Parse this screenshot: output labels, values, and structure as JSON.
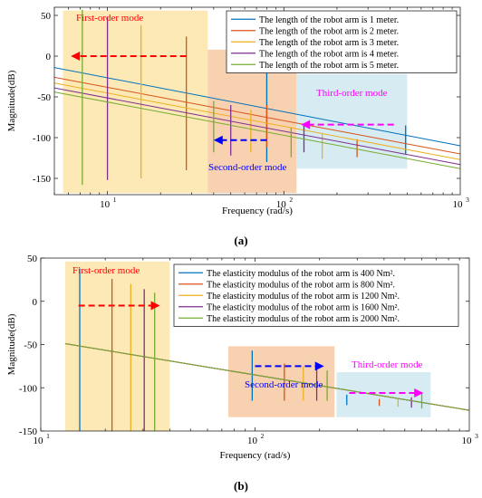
{
  "colors": {
    "series": [
      "#0072BD",
      "#D95319",
      "#EDB120",
      "#7E2F8E",
      "#77AC30"
    ],
    "first_order_box": "#FCE9B6",
    "second_order_box": "#F8D2B0",
    "third_order_box": "#D6EBF2",
    "arrow_red": "#FF0000",
    "arrow_blue": "#0000FF",
    "arrow_magenta": "#FF00FF"
  },
  "chart_data": [
    {
      "id": "a",
      "type": "line",
      "caption": "(a)",
      "xlabel": "Frequency  (rad/s)",
      "ylabel": "Magnitude(dB)",
      "xscale": "log",
      "xlim": [
        5,
        1000
      ],
      "ylim": [
        -170,
        60
      ],
      "xticks": [
        10,
        100,
        1000
      ],
      "xticklabels": [
        "10",
        "10",
        "10"
      ],
      "xtickexps": [
        "1",
        "2",
        "3"
      ],
      "yticks": [
        50,
        0,
        -50,
        -100,
        -150
      ],
      "yticklabels": [
        "50",
        "0",
        "-50",
        "-100",
        "-150"
      ],
      "grid": false,
      "legend_position": "top-right",
      "series": [
        {
          "name": "The length of the robot arm  is 1 meter.",
          "baseline": {
            "x": [
              5,
              1000
            ],
            "y": [
              -14,
              -110
            ]
          },
          "spikes": [
            {
              "x": 80,
              "y_top": 18,
              "y_bottom": -130
            },
            {
              "x": 490,
              "y_top": -85,
              "y_bottom": -120
            }
          ]
        },
        {
          "name": "The length of the robot arm  is 2 meter.",
          "baseline": {
            "x": [
              5,
              1000
            ],
            "y": [
              -26,
              -120
            ]
          },
          "spikes": [
            {
              "x": 28,
              "y_top": 24,
              "y_bottom": -140
            },
            {
              "x": 80,
              "y_top": -60,
              "y_bottom": -112
            },
            {
              "x": 260,
              "y_top": -102,
              "y_bottom": -124
            }
          ]
        },
        {
          "name": "The length of the robot arm  is 3 meter.",
          "baseline": {
            "x": [
              5,
              1000
            ],
            "y": [
              -33,
              -127
            ]
          },
          "spikes": [
            {
              "x": 15.5,
              "y_top": 38,
              "y_bottom": -150
            },
            {
              "x": 65,
              "y_top": -66,
              "y_bottom": -118
            },
            {
              "x": 165,
              "y_top": -95,
              "y_bottom": -126
            }
          ]
        },
        {
          "name": "The length of the robot arm  is 4 meter.",
          "baseline": {
            "x": [
              5,
              1000
            ],
            "y": [
              -39,
              -133
            ]
          },
          "spikes": [
            {
              "x": 10,
              "y_top": 48,
              "y_bottom": -152
            },
            {
              "x": 50,
              "y_top": -60,
              "y_bottom": -122
            },
            {
              "x": 130,
              "y_top": -85,
              "y_bottom": -118
            }
          ]
        },
        {
          "name": "The length of the robot arm  is 5 meter.",
          "baseline": {
            "x": [
              5,
              1000
            ],
            "y": [
              -44,
              -138
            ]
          },
          "spikes": [
            {
              "x": 7.2,
              "y_top": 57,
              "y_bottom": -158
            },
            {
              "x": 40,
              "y_top": -55,
              "y_bottom": -118
            },
            {
              "x": 110,
              "y_top": -88,
              "y_bottom": -124
            }
          ]
        }
      ],
      "annotations": [
        {
          "kind": "region",
          "label": "First-order mode",
          "color": "first_order_box",
          "label_color": "arrow_red",
          "x": [
            5.6,
            37
          ],
          "y": [
            -168,
            56
          ]
        },
        {
          "kind": "region",
          "label": "Second-order mode",
          "color": "second_order_box",
          "label_color": "arrow_blue",
          "x": [
            37,
            118
          ],
          "y": [
            -168,
            8
          ]
        },
        {
          "kind": "region",
          "label": "Third-order mode",
          "color": "third_order_box",
          "label_color": "arrow_magenta",
          "x": [
            118,
            500
          ],
          "y": [
            -138,
            -22
          ]
        },
        {
          "kind": "arrow",
          "color": "arrow_red",
          "from": [
            28,
            0
          ],
          "to": [
            6.2,
            0
          ]
        },
        {
          "kind": "arrow",
          "color": "arrow_blue",
          "from": [
            80,
            -103
          ],
          "to": [
            40,
            -103
          ]
        },
        {
          "kind": "arrow",
          "color": "arrow_magenta",
          "from": [
            420,
            -84
          ],
          "to": [
            125,
            -84
          ]
        }
      ]
    },
    {
      "id": "b",
      "type": "line",
      "caption": "(b)",
      "xlabel": "Frequency  (rad/s)",
      "ylabel": "Magnitude(dB)",
      "xscale": "log",
      "xlim": [
        10,
        1000
      ],
      "ylim": [
        -150,
        50
      ],
      "xticks": [
        10,
        100,
        1000
      ],
      "xticklabels": [
        "10",
        "10",
        "10"
      ],
      "xtickexps": [
        "1",
        "2",
        "3"
      ],
      "yticks": [
        50,
        0,
        -50,
        -100,
        -150
      ],
      "yticklabels": [
        "50",
        "0",
        "-50",
        "-100",
        "-150"
      ],
      "grid": false,
      "legend_position": "top-right",
      "series": [
        {
          "name": "The elasticity modulus of the robot arm is   400 Nm².",
          "baseline": {
            "x": [
              13,
              1000
            ],
            "y": [
              -49,
              -126
            ]
          },
          "spikes": [
            {
              "x": 15.2,
              "y_top": 38,
              "y_bottom": -150
            },
            {
              "x": 97,
              "y_top": -57,
              "y_bottom": -115
            },
            {
              "x": 268,
              "y_top": -108,
              "y_bottom": -120
            }
          ]
        },
        {
          "name": "The elasticity modulus of the robot arm is   800 Nm².",
          "baseline": {
            "x": [
              13,
              1000
            ],
            "y": [
              -49,
              -126
            ]
          },
          "spikes": [
            {
              "x": 21.5,
              "y_top": 26,
              "y_bottom": -150
            },
            {
              "x": 137,
              "y_top": -72,
              "y_bottom": -115
            },
            {
              "x": 380,
              "y_top": -113,
              "y_bottom": -121
            }
          ]
        },
        {
          "name": "The elasticity modulus of the robot arm is  1200 Nm².",
          "baseline": {
            "x": [
              13,
              1000
            ],
            "y": [
              -49,
              -126
            ]
          },
          "spikes": [
            {
              "x": 26.3,
              "y_top": 20,
              "y_bottom": -150
            },
            {
              "x": 168,
              "y_top": -75,
              "y_bottom": -115
            },
            {
              "x": 465,
              "y_top": -113,
              "y_bottom": -122
            }
          ]
        },
        {
          "name": "The elasticity modulus of the robot arm is  1600 Nm².",
          "baseline": {
            "x": [
              13,
              1000
            ],
            "y": [
              -49,
              -126
            ]
          },
          "spikes": [
            {
              "x": 30.4,
              "y_top": 14,
              "y_bottom": -150
            },
            {
              "x": 194,
              "y_top": -77,
              "y_bottom": -115
            },
            {
              "x": 537,
              "y_top": -111,
              "y_bottom": -123
            }
          ]
        },
        {
          "name": "The elasticity modulus of the robot arm is  2000 Nm².",
          "baseline": {
            "x": [
              13,
              1000
            ],
            "y": [
              -49,
              -126
            ]
          },
          "spikes": [
            {
              "x": 34,
              "y_top": 10,
              "y_bottom": -150
            },
            {
              "x": 217,
              "y_top": -80,
              "y_bottom": -115
            },
            {
              "x": 600,
              "y_top": -105,
              "y_bottom": -124
            }
          ]
        }
      ],
      "annotations": [
        {
          "kind": "region",
          "label": "First-order mode",
          "color": "first_order_box",
          "label_color": "arrow_red",
          "x": [
            13,
            40
          ],
          "y": [
            -150,
            46
          ]
        },
        {
          "kind": "region",
          "label": "Second-order mode",
          "color": "second_order_box",
          "label_color": "arrow_blue",
          "x": [
            75,
            235
          ],
          "y": [
            -134,
            -52
          ]
        },
        {
          "kind": "region",
          "label": "Third-order mode",
          "color": "third_order_box",
          "label_color": "arrow_magenta",
          "x": [
            240,
            660
          ],
          "y": [
            -134,
            -82
          ]
        },
        {
          "kind": "arrow",
          "color": "arrow_red",
          "from": [
            15,
            -5
          ],
          "to": [
            36,
            -5
          ]
        },
        {
          "kind": "arrow",
          "color": "arrow_blue",
          "from": [
            100,
            -75
          ],
          "to": [
            210,
            -75
          ]
        },
        {
          "kind": "arrow",
          "color": "arrow_magenta",
          "from": [
            275,
            -106
          ],
          "to": [
            610,
            -106
          ]
        }
      ]
    }
  ]
}
